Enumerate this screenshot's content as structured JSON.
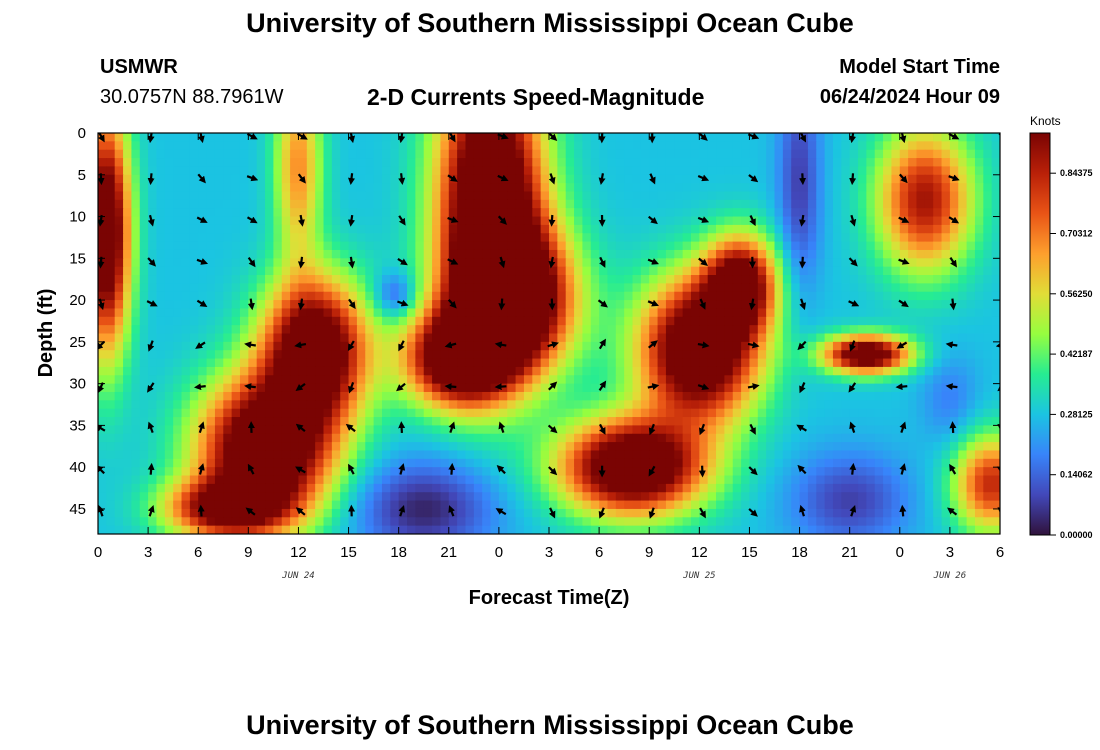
{
  "page": {
    "title_top": "University of Southern Mississippi Ocean Cube",
    "title_bottom": "University of Southern Mississippi Ocean Cube",
    "station_id": "USMWR",
    "station_coords": "30.0757N  88.7961W",
    "subtitle": "2-D Currents Speed-Magnitude",
    "model_start_label": "Model Start Time",
    "model_start_value": "06/24/2024 Hour 09"
  },
  "chart_data": {
    "type": "heatmap",
    "title": "2-D Currents Speed-Magnitude",
    "xlabel": "Forecast Time(Z)",
    "ylabel": "Depth (ft)",
    "x_tick_labels": [
      "0",
      "3",
      "6",
      "9",
      "12",
      "15",
      "18",
      "21",
      "0",
      "3",
      "6",
      "9",
      "12",
      "15",
      "18",
      "21",
      "0",
      "3",
      "6"
    ],
    "x_hours": [
      0,
      3,
      6,
      9,
      12,
      15,
      18,
      21,
      24,
      27,
      30,
      33,
      36,
      39,
      42,
      45,
      48,
      51,
      54
    ],
    "date_labels": [
      {
        "text": "JUN 24",
        "hour": 12
      },
      {
        "text": "JUN 25",
        "hour": 36
      },
      {
        "text": "JUN 26",
        "hour": 51
      }
    ],
    "y_tick_labels": [
      "0",
      "5",
      "10",
      "15",
      "20",
      "25",
      "30",
      "35",
      "40",
      "45"
    ],
    "y_values": [
      0,
      5,
      10,
      15,
      20,
      25,
      30,
      35,
      40,
      45
    ],
    "xlim": [
      0,
      54
    ],
    "ylim": [
      0,
      48
    ],
    "colorbar": {
      "title": "Knots",
      "labels": [
        "0.84375",
        "0.70312",
        "0.56250",
        "0.42187",
        "0.28125",
        "0.14062",
        "0.00000"
      ],
      "range": [
        0,
        0.9375
      ]
    },
    "speed_blobs": [
      {
        "x": 0.5,
        "y": 12,
        "sx": 1.0,
        "sy": 10,
        "v": 0.85
      },
      {
        "x": 10,
        "y": 38,
        "sx": 2.8,
        "sy": 6,
        "v": 0.9
      },
      {
        "x": 13,
        "y": 26,
        "sx": 2.2,
        "sy": 6,
        "v": 0.85
      },
      {
        "x": 7.5,
        "y": 45,
        "sx": 2.5,
        "sy": 2.5,
        "v": 0.6
      },
      {
        "x": 23.5,
        "y": 8,
        "sx": 2.2,
        "sy": 12,
        "v": 0.95
      },
      {
        "x": 21.5,
        "y": 27,
        "sx": 2.2,
        "sy": 4,
        "v": 0.8
      },
      {
        "x": 25,
        "y": 20,
        "sx": 2.5,
        "sy": 6,
        "v": 0.8
      },
      {
        "x": 36,
        "y": 26,
        "sx": 2.5,
        "sy": 6,
        "v": 0.9
      },
      {
        "x": 32,
        "y": 40,
        "sx": 3,
        "sy": 4,
        "v": 0.9
      },
      {
        "x": 38.5,
        "y": 18,
        "sx": 1.5,
        "sy": 4,
        "v": 0.7
      },
      {
        "x": 49.5,
        "y": 8,
        "sx": 2.0,
        "sy": 6,
        "v": 0.6
      },
      {
        "x": 46,
        "y": 26.5,
        "sx": 1.8,
        "sy": 1.6,
        "v": 0.82
      },
      {
        "x": 53.5,
        "y": 42,
        "sx": 1.6,
        "sy": 4,
        "v": 0.55
      },
      {
        "x": 12,
        "y": 4,
        "sx": 1.0,
        "sy": 8,
        "v": 0.4
      },
      {
        "x": 19.5,
        "y": 45,
        "sx": 3,
        "sy": 4,
        "v": -0.25
      },
      {
        "x": 17.8,
        "y": 19.5,
        "sx": 0.9,
        "sy": 2,
        "v": -0.2
      },
      {
        "x": 42,
        "y": 6,
        "sx": 0.9,
        "sy": 10,
        "v": -0.2
      },
      {
        "x": 45,
        "y": 44,
        "sx": 2.5,
        "sy": 4,
        "v": -0.2
      },
      {
        "x": 51,
        "y": 32,
        "sx": 1.2,
        "sy": 4,
        "v": -0.1
      }
    ],
    "arrow_columns_hours": [
      0,
      3,
      6,
      9,
      12,
      15,
      18,
      21,
      24,
      27,
      30,
      33,
      36,
      39,
      42,
      45,
      48,
      51,
      54
    ],
    "arrow_depths": [
      0,
      5,
      10,
      15,
      20,
      25,
      30,
      35,
      40,
      45
    ]
  }
}
